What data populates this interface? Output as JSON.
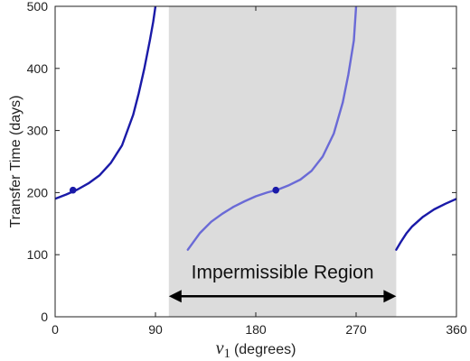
{
  "chart_data": {
    "type": "line",
    "xlabel_symbol": "ν",
    "xlabel_subscript": "1",
    "xlabel_units": "(degrees)",
    "ylabel": "Transfer Time (days)",
    "xlim": [
      0,
      360
    ],
    "ylim": [
      0,
      500
    ],
    "xticks": [
      0,
      90,
      180,
      270,
      360
    ],
    "yticks": [
      0,
      100,
      200,
      300,
      400,
      500
    ],
    "grid": false,
    "legend": "none",
    "shaded_region": {
      "x": [
        102,
        306
      ],
      "color": "#dcdcdc"
    },
    "annotation": {
      "text": "Impermissible Region",
      "arrow_x": [
        102,
        306
      ],
      "arrow_y": 33
    },
    "series": [
      {
        "segment": "left",
        "color": "#1a1aa8",
        "x": [
          0,
          10,
          20,
          30,
          40,
          50,
          60,
          70,
          75,
          80,
          85,
          88,
          90
        ],
        "y": [
          190,
          197,
          205,
          215,
          228,
          248,
          276,
          325,
          360,
          400,
          445,
          475,
          500
        ]
      },
      {
        "segment": "middle",
        "color": "#6a6ad6",
        "x": [
          119,
          130,
          140,
          150,
          160,
          170,
          180,
          190,
          200,
          210,
          220,
          230,
          240,
          250,
          258,
          263,
          268,
          270
        ],
        "y": [
          108,
          135,
          153,
          166,
          177,
          186,
          194,
          200,
          205,
          212,
          221,
          235,
          258,
          295,
          345,
          390,
          445,
          500
        ]
      },
      {
        "segment": "right",
        "color": "#1a1aa8",
        "x": [
          306,
          310,
          315,
          320,
          330,
          340,
          350,
          360
        ],
        "y": [
          108,
          120,
          134,
          145,
          161,
          173,
          182,
          190
        ]
      }
    ],
    "markers": [
      {
        "x": 16,
        "y": 204,
        "color": "#1a1aa8"
      },
      {
        "x": 198,
        "y": 204,
        "color": "#1a1aa8"
      }
    ]
  }
}
